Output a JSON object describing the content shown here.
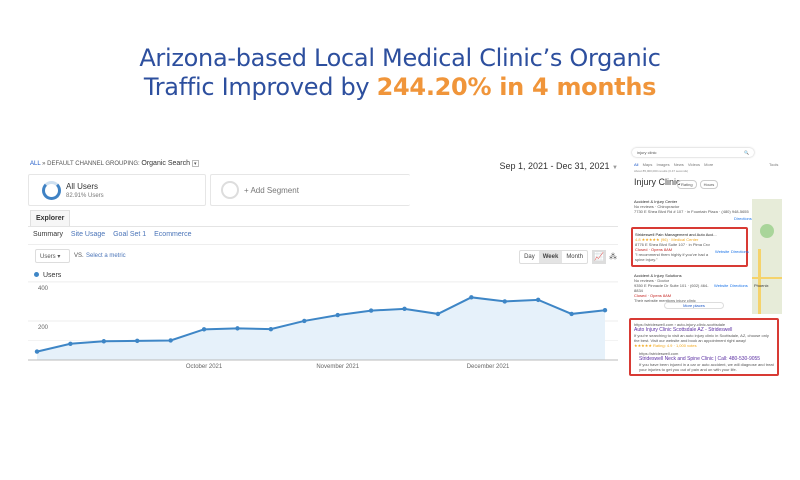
{
  "headline": {
    "line1": "Arizona-based Local Medical Clinic’s Organic",
    "line2_prefix": "Traffic Improved by ",
    "line2_highlight": "244.20% in 4 months",
    "colors": {
      "text": "#2d4f9e",
      "highlight": "#f0953a"
    }
  },
  "analytics": {
    "breadcrumb_all": "ALL",
    "breadcrumb_sep": "»",
    "breadcrumb_group": "DEFAULT CHANNEL GROUPING:",
    "breadcrumb_value": "Organic Search",
    "date_range": "Sep 1, 2021 - Dec 31, 2021",
    "segment1": {
      "title": "All Users",
      "sub": "82.91% Users"
    },
    "segment2": {
      "title": "+ Add Segment"
    },
    "tab": "Explorer",
    "subtabs": [
      "Summary",
      "Site Usage",
      "Goal Set 1",
      "Ecommerce"
    ],
    "metric": "Users",
    "vs": "VS.",
    "select_metric": "Select a metric",
    "granularity": [
      "Day",
      "Week",
      "Month"
    ],
    "granularity_selected": "Week",
    "legend": "Users"
  },
  "chart_data": {
    "type": "area",
    "series": [
      {
        "name": "Users",
        "values": [
          43,
          83,
          96,
          98,
          100,
          157,
          162,
          158,
          200,
          230,
          253,
          262,
          236,
          321,
          300,
          308,
          236,
          255
        ]
      }
    ],
    "y_ticks": [
      "200",
      "400"
    ],
    "ylim": [
      0,
      420
    ],
    "x_labels": [
      "October 2021",
      "November 2021",
      "December 2021"
    ],
    "x_label_index": [
      5,
      9,
      13.5
    ],
    "color": "#3e86c6",
    "grid": true
  },
  "serp": {
    "query": "injury clinic",
    "nav": [
      "All",
      "Maps",
      "Images",
      "News",
      "Videos",
      "More",
      "Tools"
    ],
    "results_count": "About 85,000,000 results (0.47 seconds)",
    "heading": "Injury Clinic",
    "filters": [
      "Rating",
      "Hours"
    ],
    "listings": [
      {
        "name": "Accident & Injury Center",
        "meta": "No reviews · Chiropractor",
        "addr": "7730 E Shea Blvd Rd # 107 · in Fountain Plaza · (480) 948-5655",
        "actions": [
          "Directions"
        ]
      },
      {
        "name": "Strideswell Pain Management and Auto Acci...",
        "meta": "4.8 ★★★★★ (96) · Medical Center",
        "addr": "8776 E Shea Blvd Suite 107 · in Pima Crossing · (480) 5...",
        "status": "Closed · Opens 8AM",
        "review": "\"I recommend them highly if you've had a spine injury.\"",
        "actions": [
          "Website",
          "Directions"
        ]
      },
      {
        "name": "Accident & Injury Solutions",
        "meta": "No reviews · Doctor",
        "addr": "9350 E Pinnacle Dr Suite 101 · (602) 464-8834",
        "status": "Closed · Opens 8AM",
        "review": "Their website mentions injury clinic",
        "actions": [
          "Website",
          "Directions"
        ]
      }
    ],
    "more_places": "More places",
    "map_label": "Phoenix",
    "organic": [
      {
        "url": "https://strideswell.com › auto-injury-clinic-scottsdale",
        "title": "Auto Injury Clinic Scottsdale AZ - Strideswell",
        "snippet": "If you're searching to visit an auto injury clinic in Scottsdale, AZ, choose only the best. Visit our website and book an appointment right away!",
        "rating": "★★★★★ Rating: 4.9 · 1,000 votes"
      },
      {
        "url": "https://strideswell.com",
        "title": "Strideswell Neck and Spine Clinic | Call: 480-530-9055",
        "snippet": "If you have been injured in a car or auto accident, we will diagnose and treat your injuries to get you out of pain and on with your life."
      }
    ]
  }
}
